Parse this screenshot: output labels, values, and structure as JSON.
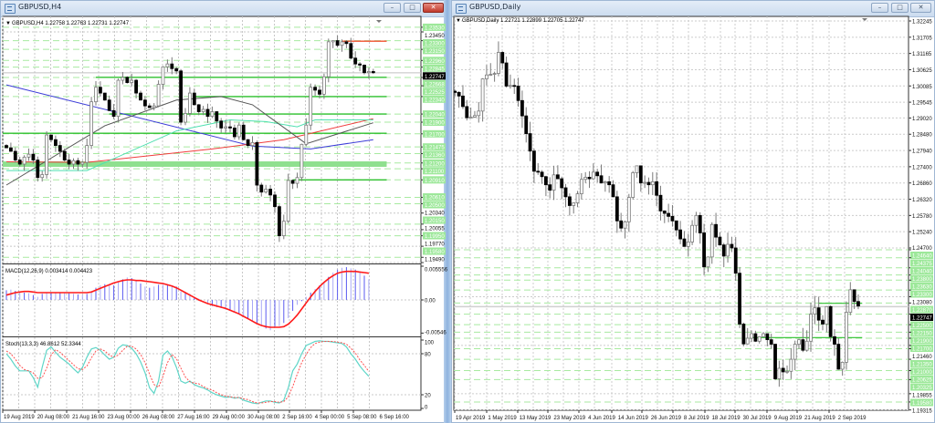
{
  "h4": {
    "title": "GBPUSD,H4",
    "header": "GBPUSD,H4  1.22758 1.22763 1.22731 1.22747",
    "current_price": "1.22747",
    "controls": {
      "minimize": "–",
      "maximize": "□",
      "close": "✕"
    },
    "price_labels": [
      {
        "text": "1.23530",
        "green": true
      },
      {
        "text": "1.23450",
        "green": false
      },
      {
        "text": "1.23300",
        "green": true
      },
      {
        "text": "1.23150",
        "green": true
      },
      {
        "text": "1.22960",
        "green": true
      },
      {
        "text": "1.22845",
        "green": true
      },
      {
        "text": "1.22668",
        "green": true
      },
      {
        "text": "1.22525",
        "green": true
      },
      {
        "text": "1.22340",
        "green": true
      },
      {
        "text": "1.22040",
        "green": true
      },
      {
        "text": "1.21900",
        "green": true
      },
      {
        "text": "1.21700",
        "green": true
      },
      {
        "text": "1.21475",
        "green": true
      },
      {
        "text": "1.21360",
        "green": true
      },
      {
        "text": "1.21200",
        "green": true
      },
      {
        "text": "1.21100",
        "green": true
      },
      {
        "text": "1.20910",
        "green": true
      },
      {
        "text": "1.20610",
        "green": true
      },
      {
        "text": "1.20500",
        "green": true
      },
      {
        "text": "1.20340",
        "green": false
      },
      {
        "text": "1.20150",
        "green": true
      },
      {
        "text": "1.20055",
        "green": false
      },
      {
        "text": "1.19950",
        "green": true
      },
      {
        "text": "1.19770",
        "green": false
      },
      {
        "text": "1.19580",
        "green": true
      },
      {
        "text": "1.19490",
        "green": false
      }
    ],
    "time_labels": [
      "19 Aug 2019",
      "20 Aug 08:00",
      "21 Aug 16:00",
      "23 Aug 00:00",
      "26 Aug 08:00",
      "27 Aug 16:00",
      "29 Aug 00:00",
      "30 Aug 08:00",
      "2 Sep 16:00",
      "4 Sep 00:00",
      "5 Sep 08:00",
      "6 Sep 16:00"
    ],
    "closes": [
      1.2146,
      1.214,
      1.2125,
      1.2118,
      1.213,
      1.2135,
      1.2125,
      1.2095,
      1.21,
      1.2168,
      1.216,
      1.215,
      1.214,
      1.2125,
      1.2118,
      1.2124,
      1.2118,
      1.2121,
      1.215,
      1.2225,
      1.225,
      1.224,
      1.2228,
      1.221,
      1.22,
      1.2262,
      1.2267,
      1.2258,
      1.2262,
      1.224,
      1.2228,
      1.2218,
      1.2215,
      1.2218,
      1.2255,
      1.2285,
      1.229,
      1.2282,
      1.2278,
      1.219,
      1.2205,
      1.224,
      1.222,
      1.2208,
      1.2212,
      1.22,
      1.2208,
      1.2192,
      1.218,
      1.2182,
      1.218,
      1.2165,
      1.2185,
      1.216,
      1.215,
      1.2155,
      1.2082,
      1.207,
      1.2075,
      1.2065,
      1.2045,
      1.1995,
      1.202,
      1.209,
      1.2085,
      1.2095,
      1.2152,
      1.2185,
      1.225,
      1.2245,
      1.2238,
      1.2268,
      1.2328,
      1.233,
      1.2322,
      1.2328,
      1.2325,
      1.23,
      1.229,
      1.2288,
      1.2275,
      1.2277,
      1.2275
    ],
    "moving_averages": [
      {
        "color": "#3c3cd8",
        "points": [
          [
            0,
            1.2254
          ],
          [
            55,
            1.2149
          ],
          [
            68,
            1.2144
          ],
          [
            82,
            1.216
          ]
        ]
      },
      {
        "color": "#f03c3c",
        "points": [
          [
            0,
            1.2122
          ],
          [
            18,
            1.2121
          ],
          [
            46,
            1.2144
          ],
          [
            62,
            1.216
          ],
          [
            82,
            1.2196
          ]
        ]
      },
      {
        "color": "#4fe0b0",
        "points": [
          [
            0,
            1.2107
          ],
          [
            18,
            1.2107
          ],
          [
            38,
            1.2175
          ],
          [
            50,
            1.2194
          ],
          [
            58,
            1.2191
          ],
          [
            65,
            1.2182
          ],
          [
            69,
            1.2194
          ],
          [
            82,
            1.2194
          ]
        ]
      },
      {
        "color": "#555555",
        "points": [
          [
            0,
            1.2082
          ],
          [
            22,
            1.2184
          ],
          [
            38,
            1.2228
          ],
          [
            48,
            1.2234
          ],
          [
            55,
            1.222
          ],
          [
            67,
            1.2153
          ],
          [
            82,
            1.2189
          ]
        ]
      }
    ],
    "levels": [
      {
        "price": 1.2329,
        "color": "#f0502d",
        "from_bar": 75,
        "to_bar": 85,
        "thick": false
      },
      {
        "price": 1.2267,
        "color": "#2ec02e",
        "from_bar": 20,
        "to_bar": 85,
        "thick": false
      },
      {
        "price": 1.2234,
        "color": "#2ec02e",
        "from_bar": 42,
        "to_bar": 85,
        "thick": false
      },
      {
        "price": 1.2204,
        "color": "#2ec02e",
        "from_bar": 23,
        "to_bar": 85,
        "thick": false
      },
      {
        "price": 1.2171,
        "color": "#2ec02e",
        "from_bar": -1,
        "to_bar": 85,
        "thick": false
      },
      {
        "price": 1.2118,
        "color": "#8fe08f",
        "from_bar": -1,
        "to_bar": 85,
        "thick": true
      },
      {
        "price": 1.2091,
        "color": "#2ec02e",
        "from_bar": 64,
        "to_bar": 85,
        "thick": false
      }
    ],
    "macd": {
      "header": "MACD(12,26,9) 0.003414 0.004423",
      "scale_labels": [
        "0.005556",
        "0.00",
        "-0.00546"
      ],
      "histogram": [
        0.0016,
        0.0017,
        0.0015,
        0.0013,
        0.0012,
        0.0011,
        0.0008,
        0.0005,
        0.001,
        0.0012,
        0.0012,
        0.0012,
        0.0012,
        0.0011,
        0.0011,
        0.001,
        0.0009,
        0.0008,
        0.001,
        0.0012,
        0.002,
        0.0024,
        0.0026,
        0.0026,
        0.0024,
        0.0029,
        0.0034,
        0.0037,
        0.0036,
        0.0031,
        0.0027,
        0.0022,
        0.002,
        0.0022,
        0.0025,
        0.0025,
        0.0025,
        0.0023,
        0.0022,
        0.0014,
        0.0012,
        0.001,
        0.0005,
        0.0002,
        0.0,
        -0.0005,
        -0.001,
        -0.0012,
        -0.0013,
        -0.0016,
        -0.0018,
        -0.002,
        -0.0024,
        -0.0027,
        -0.003,
        -0.0035,
        -0.004,
        -0.0043,
        -0.0047,
        -0.005,
        -0.0044,
        -0.0043,
        -0.0038,
        -0.003,
        -0.0018,
        -0.0008,
        -0.0002,
        0.0005,
        0.0012,
        0.0018,
        0.0024,
        0.003,
        0.0038,
        0.0045,
        0.005,
        0.0053,
        0.0054,
        0.0052,
        0.005,
        0.0046,
        0.004,
        0.0034
      ],
      "signal": [
        0.0008,
        0.001,
        0.0012,
        0.0013,
        0.0014,
        0.0014,
        0.0013,
        0.0012,
        0.0012,
        0.0012,
        0.0012,
        0.0012,
        0.0012,
        0.0012,
        0.0012,
        0.0012,
        0.0012,
        0.0012,
        0.0012,
        0.0013,
        0.0016,
        0.0019,
        0.0022,
        0.0025,
        0.0028,
        0.003,
        0.0032,
        0.0033,
        0.0033,
        0.0032,
        0.0032,
        0.0031,
        0.003,
        0.0029,
        0.0028,
        0.0027,
        0.0025,
        0.0023,
        0.002,
        0.0016,
        0.0012,
        0.0008,
        0.0004,
        0.0,
        -0.0003,
        -0.0006,
        -0.0008,
        -0.001,
        -0.0012,
        -0.0014,
        -0.0017,
        -0.002,
        -0.0023,
        -0.0027,
        -0.0031,
        -0.0035,
        -0.0039,
        -0.0042,
        -0.0044,
        -0.0045,
        -0.0045,
        -0.0045,
        -0.0044,
        -0.004,
        -0.0033,
        -0.0025,
        -0.0015,
        -0.0005,
        0.0005,
        0.0014,
        0.0022,
        0.0029,
        0.0035,
        0.004,
        0.0044,
        0.0046,
        0.0047,
        0.0047,
        0.0047,
        0.0046,
        0.0045,
        0.0044
      ],
      "histogram_color": "#5a5af0",
      "signal_color": "#ff1a1a"
    },
    "stoch": {
      "header": "Stoch(13,3,3) 46.8612 52.3344",
      "scale_labels": [
        "100",
        "80",
        "20",
        "0"
      ],
      "main": [
        80,
        72,
        62,
        55,
        55,
        55,
        45,
        31,
        60,
        85,
        90,
        82,
        75,
        70,
        65,
        58,
        52,
        60,
        75,
        87,
        89,
        85,
        78,
        72,
        75,
        88,
        93,
        92,
        88,
        80,
        68,
        52,
        30,
        22,
        40,
        78,
        84,
        76,
        60,
        40,
        37,
        40,
        35,
        32,
        30,
        27,
        23,
        20,
        18,
        16,
        17,
        15,
        16,
        12,
        10,
        8,
        7,
        9,
        11,
        11,
        9,
        8,
        12,
        30,
        55,
        65,
        80,
        92,
        95,
        98,
        99,
        98,
        98,
        97,
        96,
        95,
        90,
        80,
        72,
        62,
        54,
        47
      ],
      "signal": [
        84,
        80,
        72,
        63,
        57,
        55,
        52,
        44,
        45,
        59,
        78,
        86,
        82,
        76,
        70,
        64,
        58,
        57,
        62,
        74,
        84,
        87,
        84,
        78,
        75,
        78,
        85,
        91,
        91,
        87,
        79,
        67,
        50,
        35,
        31,
        47,
        67,
        79,
        73,
        59,
        46,
        39,
        37,
        36,
        32,
        29,
        27,
        23,
        20,
        18,
        17,
        16,
        16,
        14,
        13,
        10,
        8,
        8,
        9,
        10,
        10,
        9,
        10,
        17,
        32,
        50,
        67,
        79,
        89,
        95,
        97,
        98,
        98,
        98,
        97,
        96,
        94,
        88,
        81,
        71,
        63,
        54
      ],
      "main_color": "#5fd6c8",
      "signal_color": "#ff5050"
    }
  },
  "daily": {
    "title": "GBPUSD,Daily",
    "header": "GBPUSD,Daily  1.22721 1.22899 1.22705 1.22747",
    "current_price": "1.22747",
    "controls": {
      "minimize": "–",
      "maximize": "□",
      "close": "✕"
    },
    "price_labels": [
      {
        "text": "1.32245",
        "green": false
      },
      {
        "text": "1.31705",
        "green": false
      },
      {
        "text": "1.31165",
        "green": false
      },
      {
        "text": "1.30625",
        "green": false
      },
      {
        "text": "1.30085",
        "green": false
      },
      {
        "text": "1.29545",
        "green": false
      },
      {
        "text": "1.29020",
        "green": false
      },
      {
        "text": "1.28480",
        "green": false
      },
      {
        "text": "1.27940",
        "green": false
      },
      {
        "text": "1.27400",
        "green": false
      },
      {
        "text": "1.26860",
        "green": false
      },
      {
        "text": "1.26320",
        "green": false
      },
      {
        "text": "1.25780",
        "green": false
      },
      {
        "text": "1.25240",
        "green": false
      },
      {
        "text": "1.24700",
        "green": false
      },
      {
        "text": "1.24640",
        "green": true
      },
      {
        "text": "1.24375",
        "green": true
      },
      {
        "text": "1.24040",
        "green": true
      },
      {
        "text": "1.23800",
        "green": true
      },
      {
        "text": "1.23630",
        "green": true
      },
      {
        "text": "1.23300",
        "green": true
      },
      {
        "text": "1.23080",
        "green": false
      },
      {
        "text": "1.22870",
        "green": true
      },
      {
        "text": "1.22500",
        "green": true
      },
      {
        "text": "1.22150",
        "green": true
      },
      {
        "text": "1.21900",
        "green": true
      },
      {
        "text": "1.21700",
        "green": true
      },
      {
        "text": "1.21460",
        "green": false
      },
      {
        "text": "1.21350",
        "green": true
      },
      {
        "text": "1.21000",
        "green": true
      },
      {
        "text": "1.20625",
        "green": true
      },
      {
        "text": "1.20325",
        "green": true
      },
      {
        "text": "1.19855",
        "green": false
      },
      {
        "text": "1.19580",
        "green": true
      },
      {
        "text": "1.19315",
        "green": false
      }
    ],
    "time_labels": [
      "19 Apr 2019",
      "1 May 2019",
      "13 May 2019",
      "23 May 2019",
      "4 Jun 2019",
      "14 Jun 2019",
      "26 Jun 2019",
      "8 Jul 2019",
      "18 Jul 2019",
      "30 Jul 2019",
      "9 Aug 2019",
      "21 Aug 2019",
      "2 Sep 2019"
    ],
    "closes": [
      1.2987,
      1.2975,
      1.294,
      1.2903,
      1.2905,
      1.291,
      1.2925,
      1.3032,
      1.3045,
      1.3047,
      1.305,
      1.312,
      1.3085,
      1.3008,
      1.301,
      1.3008,
      1.296,
      1.2909,
      1.285,
      1.2792,
      1.2725,
      1.2722,
      1.2707,
      1.268,
      1.2662,
      1.2713,
      1.27,
      1.267,
      1.264,
      1.2611,
      1.262,
      1.265,
      1.2698,
      1.2705,
      1.27,
      1.2722,
      1.271,
      1.2686,
      1.269,
      1.268,
      1.264,
      1.256,
      1.2536,
      1.2557,
      1.2638,
      1.272,
      1.2743,
      1.2686,
      1.2688,
      1.268,
      1.269,
      1.2645,
      1.2593,
      1.2585,
      1.2575,
      1.256,
      1.253,
      1.25,
      1.2475,
      1.249,
      1.2545,
      1.2578,
      1.252,
      1.2407,
      1.244,
      1.2548,
      1.2506,
      1.248,
      1.2443,
      1.2482,
      1.247,
      1.2386,
      1.2217,
      1.2151,
      1.217,
      1.2185,
      1.216,
      1.2175,
      1.2185,
      1.2165,
      1.215,
      1.2035,
      1.207,
      1.2058,
      1.206,
      1.21,
      1.215,
      1.2165,
      1.213,
      1.216,
      1.225,
      1.2271,
      1.223,
      1.2217,
      1.2275,
      1.2175,
      1.215,
      1.2067,
      1.209,
      1.2256,
      1.2331,
      1.2292,
      1.2277
    ],
    "levels": [
      {
        "price": 1.2286,
        "color": "#2ec02e",
        "from_bar": 92,
        "to_bar": 103
      },
      {
        "price": 1.2172,
        "color": "#2ec02e",
        "from_bar": 75,
        "to_bar": 103
      }
    ]
  }
}
